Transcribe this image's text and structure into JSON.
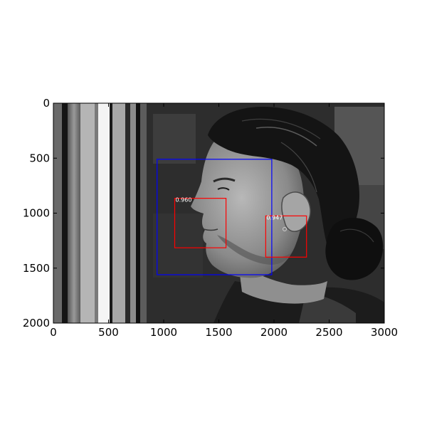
{
  "axes": {
    "x_ticks": [
      0,
      500,
      1000,
      1500,
      2000,
      2500,
      3000
    ],
    "y_ticks": [
      0,
      500,
      1000,
      1500,
      2000
    ],
    "xlim": [
      0,
      3000
    ],
    "ylim": [
      2000,
      0
    ],
    "grid": false,
    "frame_color": "#000000"
  },
  "image": {
    "subject": "grayscale photo of a man in profile facing left, long dark hair tied in a bun, wearing a dark hoodie, standing beside glass doors",
    "colorscale": "grayscale"
  },
  "detections": [
    {
      "label": "face",
      "color": "#0000ff",
      "x_range": [
        940,
        1980
      ],
      "y_range": [
        510,
        1560
      ]
    },
    {
      "label": "mouth",
      "score": "0.960",
      "color": "#ff0000",
      "x_range": [
        1100,
        1565
      ],
      "y_range": [
        865,
        1315
      ]
    },
    {
      "label": "ear",
      "score": "0.947",
      "color": "#ff0000",
      "x_range": [
        1925,
        2295
      ],
      "y_range": [
        1025,
        1400
      ]
    }
  ]
}
